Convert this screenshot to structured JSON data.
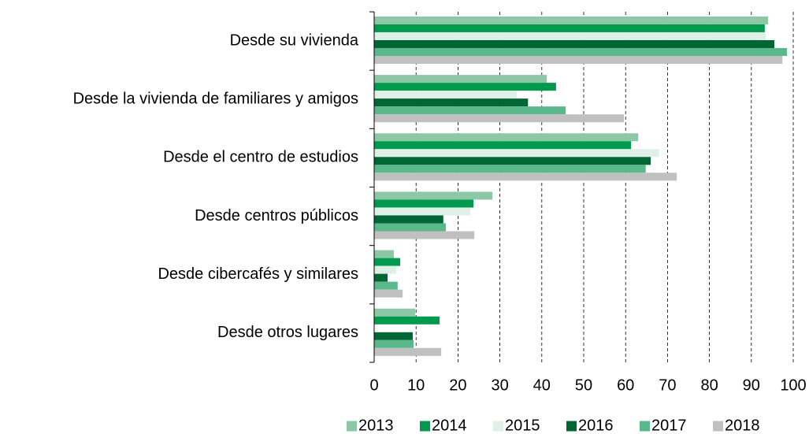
{
  "chart_data": {
    "type": "hbar",
    "categories": [
      "Desde su vivienda",
      "Desde la vivienda de familiares y amigos",
      "Desde el centro de estudios",
      "Desde centros públicos",
      "Desde cibercafés y similares",
      "Desde otros lugares"
    ],
    "series": [
      {
        "name": "2013",
        "color": "#8dc8a6",
        "values": [
          94.0,
          41.2,
          63.0,
          28.2,
          4.7,
          9.8
        ]
      },
      {
        "name": "2014",
        "color": "#009a4e",
        "values": [
          93.2,
          43.4,
          61.3,
          23.7,
          6.2,
          15.6
        ]
      },
      {
        "name": "2015",
        "color": "#dff0e6",
        "values": [
          93.4,
          34.0,
          68.0,
          22.9,
          5.3,
          null
        ]
      },
      {
        "name": "2016",
        "color": "#006633",
        "values": [
          95.5,
          36.7,
          66.0,
          16.5,
          3.2,
          9.2
        ]
      },
      {
        "name": "2017",
        "color": "#5bb88a",
        "values": [
          98.5,
          45.7,
          64.8,
          17.1,
          5.6,
          9.4
        ]
      },
      {
        "name": "2018",
        "color": "#c0c0c0",
        "values": [
          97.4,
          59.6,
          72.2,
          23.9,
          6.8,
          16.0
        ]
      }
    ],
    "xlim": [
      0,
      100
    ],
    "xticks": [
      0,
      10,
      20,
      30,
      40,
      50,
      60,
      70,
      80,
      90,
      100
    ],
    "grid": true,
    "legend": "bottom"
  }
}
